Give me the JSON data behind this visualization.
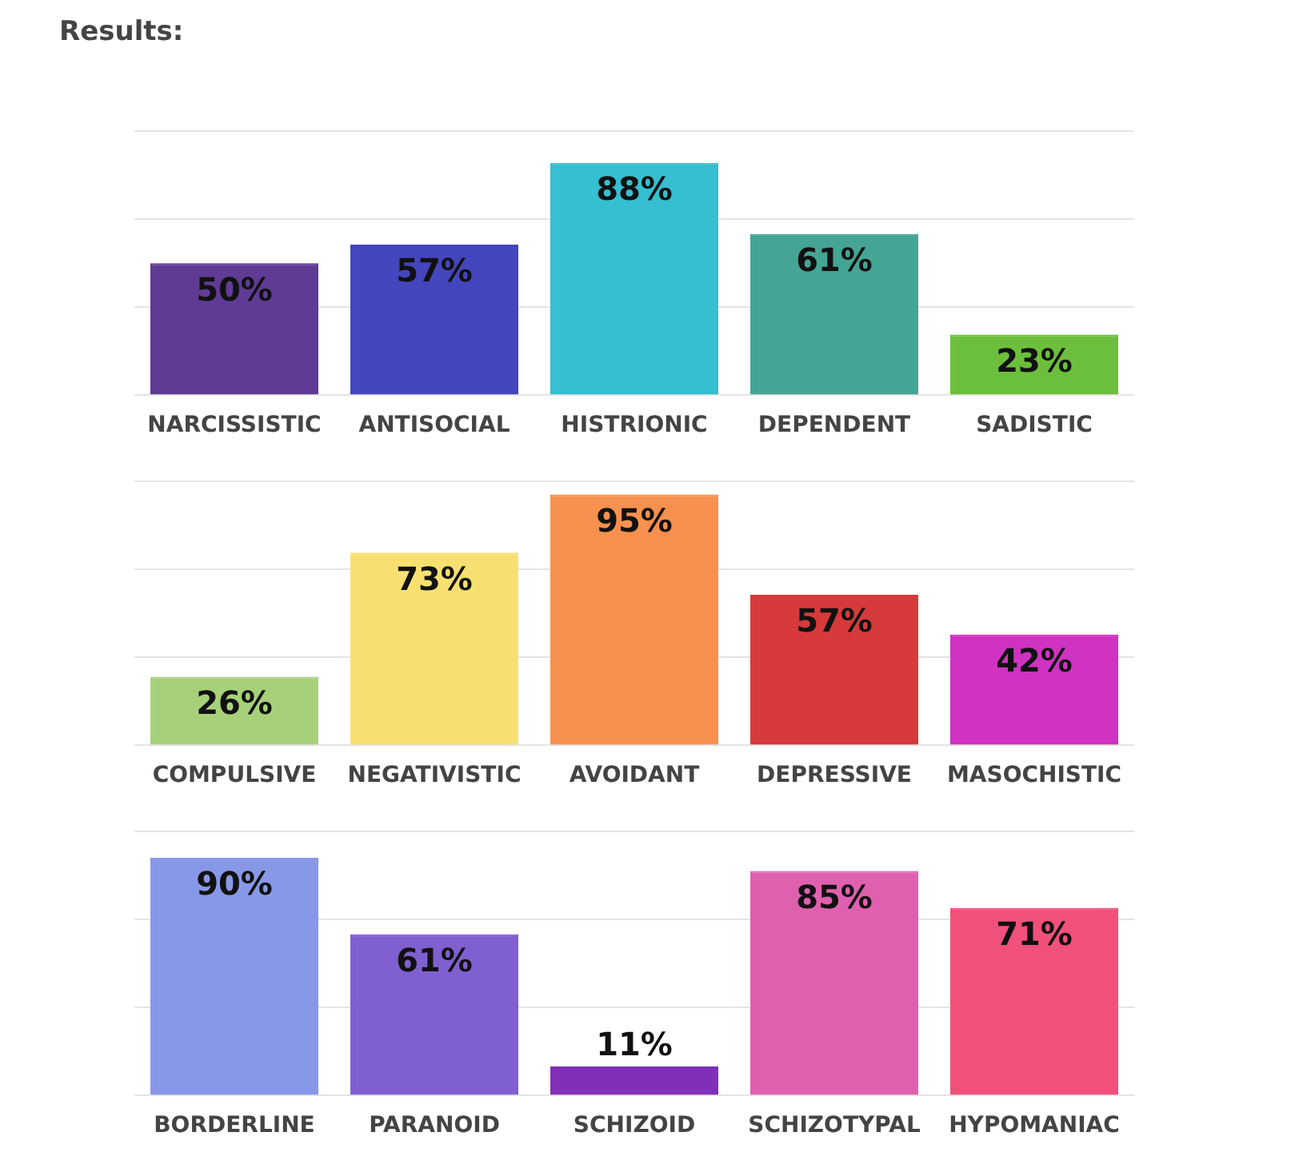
{
  "chart_data": [
    {
      "type": "bar",
      "title": "Results:",
      "categories": [
        "NARCISSISTIC",
        "ANTISOCIAL",
        "HISTRIONIC",
        "DEPENDENT",
        "SADISTIC"
      ],
      "values": [
        50,
        57,
        88,
        61,
        23
      ],
      "value_labels": [
        "50%",
        "57%",
        "88%",
        "61%",
        "23%"
      ],
      "colors": [
        "#5f3b95",
        "#4545bd",
        "#35bfd0",
        "#45a595",
        "#6cbf3c"
      ],
      "ylim": [
        0,
        100
      ],
      "yticks": [
        {
          "value": 0,
          "label": null
        },
        {
          "value": 33.3,
          "label": null
        },
        {
          "value": 66.7,
          "label": null
        },
        {
          "value": 100,
          "label": null
        }
      ],
      "grid": "y",
      "tick_labels": "x"
    },
    {
      "type": "bar",
      "categories": [
        "COMPULSIVE",
        "NEGATIVISTIC",
        "AVOIDANT",
        "DEPRESSIVE",
        "MASOCHISTIC"
      ],
      "values": [
        26,
        73,
        95,
        57,
        42
      ],
      "value_labels": [
        "26%",
        "73%",
        "95%",
        "57%",
        "42%"
      ],
      "colors": [
        "#a8d07a",
        "#f8e070",
        "#f8904f",
        "#d63a3a",
        "#d032c2"
      ],
      "ylim": [
        0,
        100
      ],
      "yticks": [
        {
          "value": 0,
          "label": null
        },
        {
          "value": 33.3,
          "label": null
        },
        {
          "value": 66.7,
          "label": null
        },
        {
          "value": 100,
          "label": null
        }
      ],
      "grid": "y",
      "tick_labels": "x"
    },
    {
      "type": "bar",
      "categories": [
        "BORDERLINE",
        "PARANOID",
        "SCHIZOID",
        "SCHIZOTYPAL",
        "HYPOMANIAC"
      ],
      "values": [
        90,
        61,
        11,
        85,
        71
      ],
      "value_labels": [
        "90%",
        "61%",
        "11%",
        "85%",
        "71%"
      ],
      "colors": [
        "#8898e8",
        "#8060d0",
        "#8030b8",
        "#e060b0",
        "#f0507a"
      ],
      "ylim": [
        0,
        100
      ],
      "yticks": [
        {
          "value": 0,
          "label": null
        },
        {
          "value": 33.3,
          "label": null
        },
        {
          "value": 66.7,
          "label": null
        },
        {
          "value": 100,
          "label": null
        }
      ],
      "grid": "y",
      "tick_labels": "x"
    }
  ]
}
